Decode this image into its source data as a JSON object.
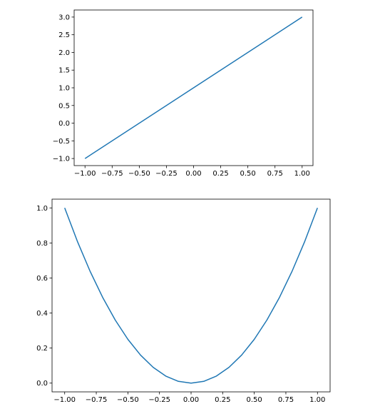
{
  "chart_data": [
    {
      "type": "line",
      "title": "",
      "xlabel": "",
      "ylabel": "",
      "xlim": [
        -1.1,
        1.1
      ],
      "ylim": [
        -1.2,
        3.2
      ],
      "grid": false,
      "color": "#1f77b4",
      "xticks": [
        -1.0,
        -0.75,
        -0.5,
        -0.25,
        0.0,
        0.25,
        0.5,
        0.75,
        1.0
      ],
      "xtick_labels": [
        "−1.00",
        "−0.75",
        "−0.50",
        "−0.25",
        "0.00",
        "0.25",
        "0.50",
        "0.75",
        "1.00"
      ],
      "yticks": [
        -1.0,
        -0.5,
        0.0,
        0.5,
        1.0,
        1.5,
        2.0,
        2.5,
        3.0
      ],
      "ytick_labels": [
        "−1.0",
        "−0.5",
        "0.0",
        "0.5",
        "1.0",
        "1.5",
        "2.0",
        "2.5",
        "3.0"
      ],
      "series": [
        {
          "x": [
            -1.0,
            1.0
          ],
          "y": [
            -1.0,
            3.0
          ]
        }
      ]
    },
    {
      "type": "line",
      "title": "",
      "xlabel": "",
      "ylabel": "",
      "xlim": [
        -1.1,
        1.1
      ],
      "ylim": [
        -0.05,
        1.05
      ],
      "grid": false,
      "color": "#1f77b4",
      "xticks": [
        -1.0,
        -0.75,
        -0.5,
        -0.25,
        0.0,
        0.25,
        0.5,
        0.75,
        1.0
      ],
      "xtick_labels": [
        "−1.00",
        "−0.75",
        "−0.50",
        "−0.25",
        "0.00",
        "0.25",
        "0.50",
        "0.75",
        "1.00"
      ],
      "yticks": [
        0.0,
        0.2,
        0.4,
        0.6,
        0.8,
        1.0
      ],
      "ytick_labels": [
        "0.0",
        "0.2",
        "0.4",
        "0.6",
        "0.8",
        "1.0"
      ],
      "series": [
        {
          "x": [
            -1.0,
            -0.9,
            -0.8,
            -0.7,
            -0.6,
            -0.5,
            -0.4,
            -0.3,
            -0.2,
            -0.1,
            0.0,
            0.1,
            0.2,
            0.3,
            0.4,
            0.5,
            0.6,
            0.7,
            0.8,
            0.9,
            1.0
          ],
          "y": [
            1.0,
            0.81,
            0.64,
            0.49,
            0.36,
            0.25,
            0.16,
            0.09,
            0.04,
            0.01,
            0.0,
            0.01,
            0.04,
            0.09,
            0.16,
            0.25,
            0.36,
            0.49,
            0.64,
            0.81,
            1.0
          ]
        }
      ]
    }
  ]
}
